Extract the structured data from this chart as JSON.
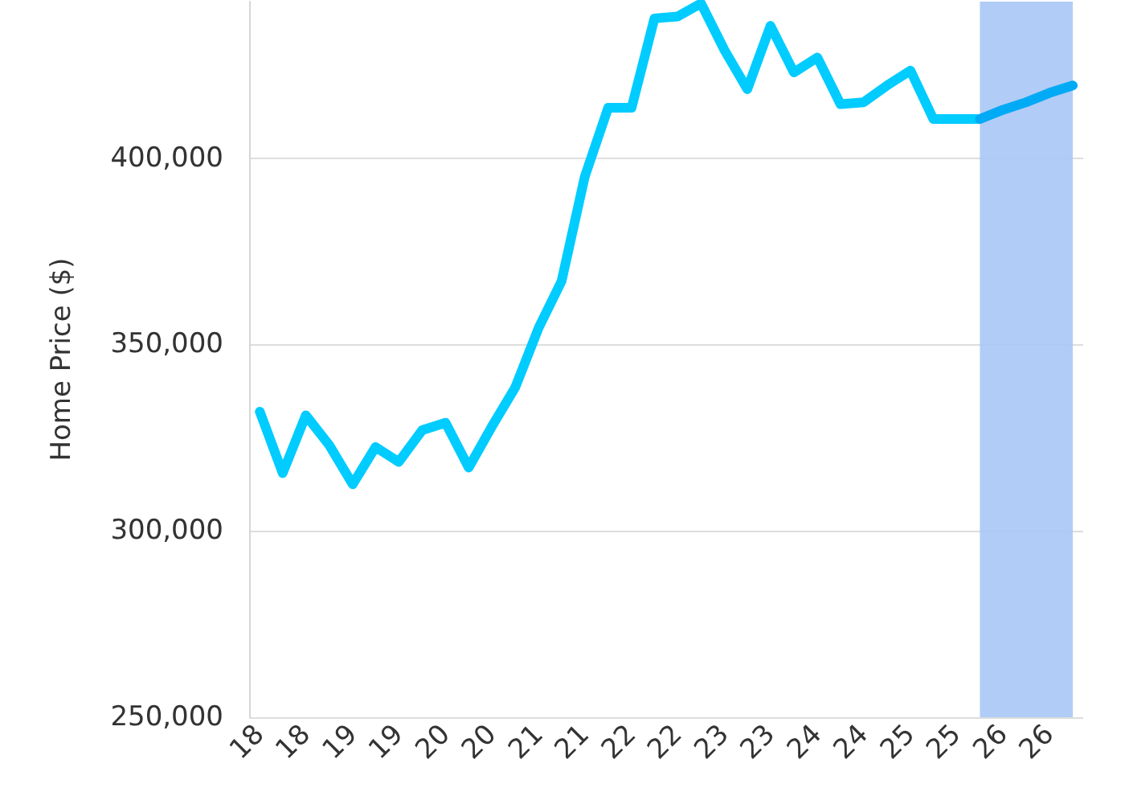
{
  "chart_data": {
    "type": "line",
    "ylabel": "Home Price ($)",
    "x": [
      "2018-01",
      "2018-04",
      "2018-07",
      "2018-10",
      "2019-01",
      "2019-04",
      "2019-07",
      "2019-10",
      "2020-01",
      "2020-04",
      "2020-07",
      "2020-10",
      "2021-01",
      "2021-04",
      "2021-07",
      "2021-10",
      "2022-01",
      "2022-04",
      "2022-07",
      "2022-10",
      "2023-01",
      "2023-04",
      "2023-07",
      "2023-10",
      "2024-01",
      "2024-04",
      "2024-07",
      "2024-10",
      "2025-01",
      "2025-04",
      "2025-07",
      "2025-10",
      "2026-01",
      "2026-04",
      "2026-07",
      "2026-10"
    ],
    "xlim": [
      "2017-11-20",
      "2026-11-11"
    ],
    "xticks": [
      {
        "value": "2018-01",
        "label": "18"
      },
      {
        "value": "2018-07",
        "label": "18"
      },
      {
        "value": "2019-01",
        "label": "19"
      },
      {
        "value": "2019-07",
        "label": "19"
      },
      {
        "value": "2020-01",
        "label": "20"
      },
      {
        "value": "2020-07",
        "label": "20"
      },
      {
        "value": "2021-01",
        "label": "21"
      },
      {
        "value": "2021-07",
        "label": "21"
      },
      {
        "value": "2022-01",
        "label": "22"
      },
      {
        "value": "2022-07",
        "label": "22"
      },
      {
        "value": "2023-01",
        "label": "23"
      },
      {
        "value": "2023-07",
        "label": "23"
      },
      {
        "value": "2024-01",
        "label": "24"
      },
      {
        "value": "2024-07",
        "label": "24"
      },
      {
        "value": "2025-01",
        "label": "25"
      },
      {
        "value": "2025-07",
        "label": "25"
      },
      {
        "value": "2026-01",
        "label": "26"
      },
      {
        "value": "2026-07",
        "label": "26"
      }
    ],
    "ylim": [
      250000,
      442000
    ],
    "yticks": [
      {
        "value": 250000,
        "label": "250,000"
      },
      {
        "value": 300000,
        "label": "300,000"
      },
      {
        "value": 350000,
        "label": "350,000"
      },
      {
        "value": 400000,
        "label": "400,000"
      }
    ],
    "grid": "y",
    "marker": "none",
    "series": [
      {
        "color": "#00ccff",
        "values": [
          332000,
          315500,
          331000,
          323000,
          312500,
          322500,
          318500,
          327000,
          329000,
          317000,
          328000,
          338500,
          354500,
          367000,
          395000,
          413500,
          413500,
          437500,
          438000,
          441500,
          429000,
          418500,
          435500,
          423000,
          427000,
          414500,
          415000,
          419500,
          423500,
          410500,
          410500,
          410500,
          null,
          null,
          null,
          null
        ]
      },
      {
        "color": "#00aaf5",
        "values": [
          null,
          null,
          null,
          null,
          null,
          null,
          null,
          null,
          null,
          null,
          null,
          null,
          null,
          null,
          null,
          null,
          null,
          null,
          null,
          null,
          null,
          null,
          null,
          null,
          null,
          null,
          null,
          null,
          null,
          null,
          null,
          410500,
          413000,
          415000,
          417500,
          419500
        ]
      }
    ],
    "bands": [
      {
        "axis": "x",
        "from": "2025-10",
        "to": "2026-10",
        "color": "#a9c6f5"
      }
    ]
  }
}
